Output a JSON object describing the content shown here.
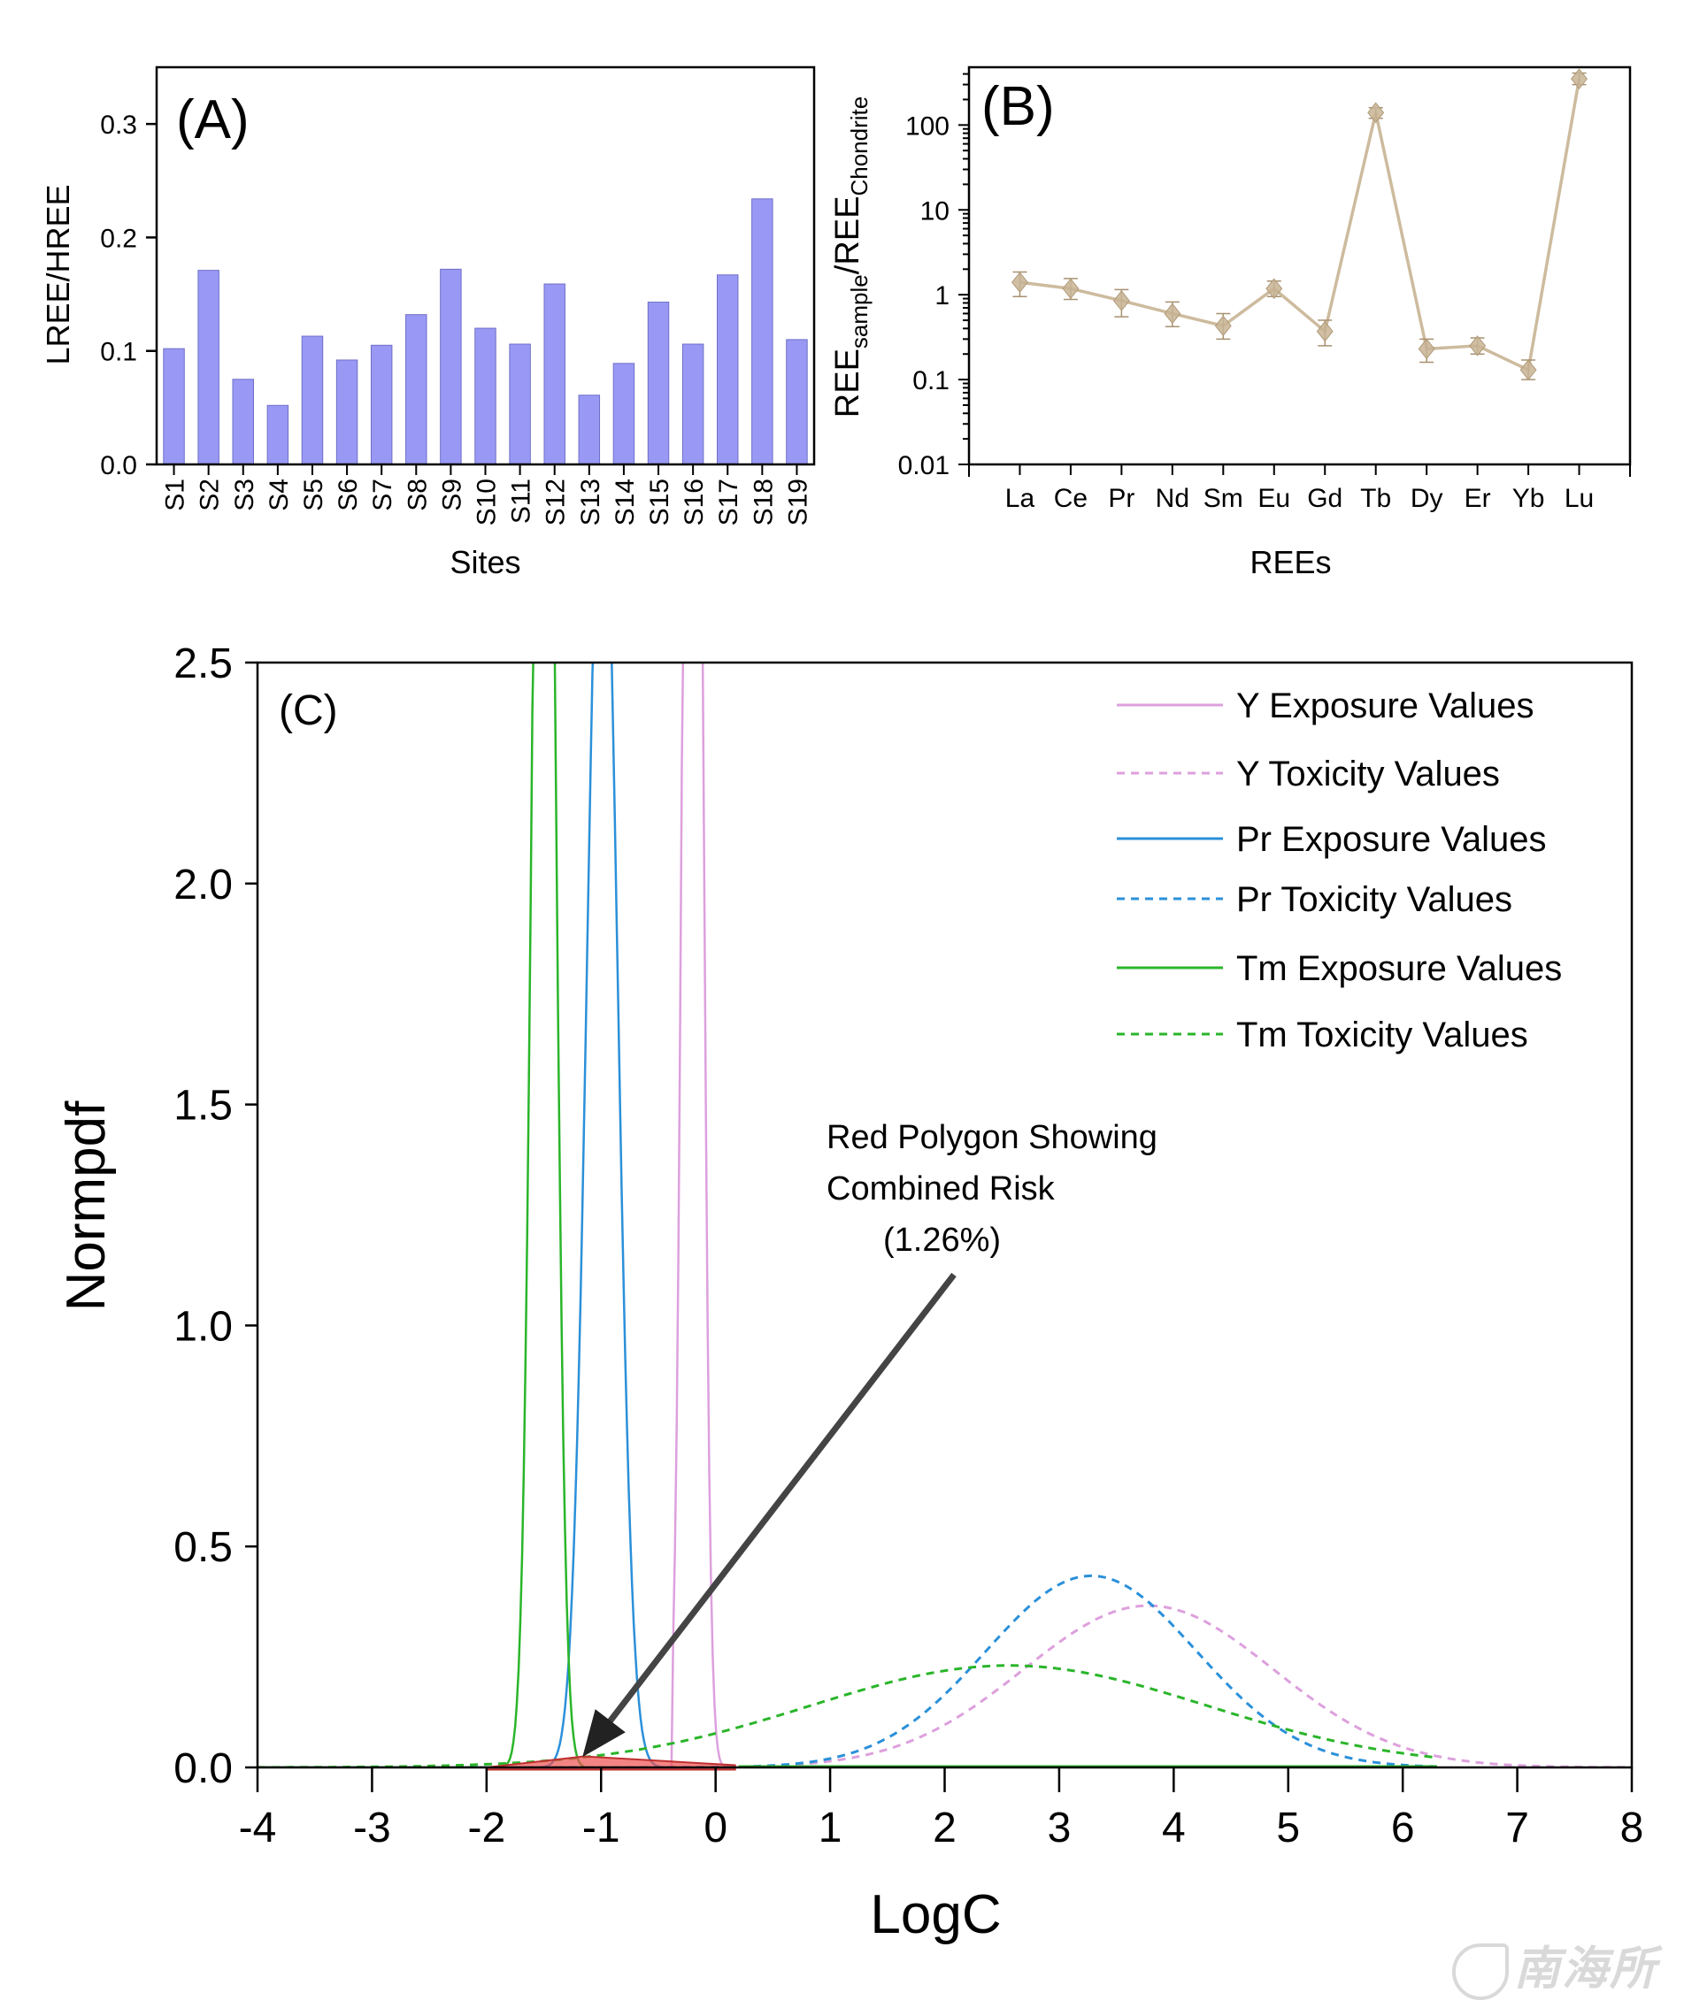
{
  "figure": {
    "watermark": "南海所",
    "colors": {
      "bar_fill": "#9999f5",
      "bar_stroke": "#6e6ec8",
      "ree_line": "#c8b494",
      "ree_marker": "#c8b494",
      "y_color": "#dda0dd",
      "pr_color": "#2b90d9",
      "tm_color": "#2ab52a",
      "risk_polygon": "#f05050",
      "arrow": "#444444"
    }
  },
  "chart_data": [
    {
      "id": "A",
      "type": "bar",
      "panel_label": "(A)",
      "title": "",
      "xlabel": "Sites",
      "ylabel": "LREE/HREE",
      "ylim": [
        0,
        0.35
      ],
      "yticks": [
        0.0,
        0.1,
        0.2,
        0.3
      ],
      "ytick_labels": [
        "0.0",
        "0.1",
        "0.2",
        "0.3"
      ],
      "grid": false,
      "categories": [
        "S1",
        "S2",
        "S3",
        "S4",
        "S5",
        "S6",
        "S7",
        "S8",
        "S9",
        "S10",
        "S11",
        "S12",
        "S13",
        "S14",
        "S15",
        "S16",
        "S17",
        "S18",
        "S19"
      ],
      "values": [
        0.102,
        0.171,
        0.075,
        0.052,
        0.113,
        0.092,
        0.105,
        0.132,
        0.172,
        0.12,
        0.106,
        0.159,
        0.061,
        0.089,
        0.143,
        0.106,
        0.167,
        0.234,
        0.11
      ]
    },
    {
      "id": "B",
      "type": "line",
      "panel_label": "(B)",
      "title": "",
      "xlabel": "REEs",
      "ylabel_main": "REE",
      "ylabel_sub1": "sample",
      "ylabel_mid": "/REE",
      "ylabel_sub2": "Chondrite",
      "yscale": "log",
      "ylim": [
        0.01,
        480
      ],
      "yticks": [
        0.01,
        0.1,
        1,
        10,
        100
      ],
      "ytick_labels": [
        "0.01",
        "0.1",
        "1",
        "10",
        "100"
      ],
      "grid": false,
      "categories": [
        "La",
        "Ce",
        "Pr",
        "Nd",
        "Sm",
        "Eu",
        "Gd",
        "Tb",
        "Dy",
        "Er",
        "Yb",
        "Lu"
      ],
      "values": [
        1.4,
        1.18,
        0.85,
        0.6,
        0.43,
        1.18,
        0.37,
        140,
        0.23,
        0.25,
        0.13,
        350
      ],
      "err_low": [
        0.95,
        0.88,
        0.55,
        0.42,
        0.3,
        0.95,
        0.25,
        120,
        0.16,
        0.2,
        0.1,
        300
      ],
      "err_high": [
        1.85,
        1.55,
        1.15,
        0.82,
        0.6,
        1.45,
        0.5,
        160,
        0.3,
        0.31,
        0.17,
        410
      ],
      "marker": "diamond"
    },
    {
      "id": "C",
      "type": "line",
      "panel_label": "(C)",
      "title": "",
      "xlabel": "LogC",
      "ylabel": "Normpdf",
      "xlim": [
        -4,
        8
      ],
      "ylim": [
        0,
        2.5
      ],
      "xticks": [
        -4,
        -3,
        -2,
        -1,
        0,
        1,
        2,
        3,
        4,
        5,
        6,
        7,
        8
      ],
      "xtick_labels": [
        "-4",
        "-3",
        "-2",
        "-1",
        "0",
        "1",
        "2",
        "3",
        "4",
        "5",
        "6",
        "7",
        "8"
      ],
      "yticks": [
        0.0,
        0.5,
        1.0,
        1.5,
        2.0,
        2.5
      ],
      "ytick_labels": [
        "0.0",
        "0.5",
        "1.0",
        "1.5",
        "2.0",
        "2.5"
      ],
      "grid": false,
      "legend_position": "top-right",
      "series": [
        {
          "name": "Y Exposure Values",
          "element": "Y",
          "kind": "exposure",
          "style": "solid",
          "color_key": "y_color",
          "mean": -0.2,
          "sd": 0.07,
          "x_range": [
            -0.38,
            0.17
          ]
        },
        {
          "name": "Y Toxicity Values",
          "element": "Y",
          "kind": "toxicity",
          "style": "dashed",
          "color_key": "y_color",
          "mean": 3.78,
          "sd": 1.09,
          "x_range": [
            -4,
            8
          ]
        },
        {
          "name": "Pr Exposure Values",
          "element": "Pr",
          "kind": "exposure",
          "style": "solid",
          "color_key": "pr_color",
          "mean": -0.99,
          "sd": 0.13,
          "x_range": [
            -1.53,
            -0.45
          ]
        },
        {
          "name": "Pr Toxicity Values",
          "element": "Pr",
          "kind": "toxicity",
          "style": "dashed",
          "color_key": "pr_color",
          "mean": 3.28,
          "sd": 0.92,
          "x_range": [
            -4,
            6.3
          ]
        },
        {
          "name": "Tm Exposure Values",
          "element": "Tm",
          "kind": "exposure",
          "style": "solid",
          "color_key": "tm_color",
          "mean": -1.5,
          "sd": 0.09,
          "x_range": [
            -1.94,
            -1.15
          ]
        },
        {
          "name": "Tm Toxicity Values",
          "element": "Tm",
          "kind": "toxicity",
          "style": "dashed",
          "color_key": "tm_color",
          "mean": 2.56,
          "sd": 1.73,
          "x_range": [
            -4,
            6.3
          ]
        }
      ],
      "annotation": {
        "lines": [
          "Red Polygon Showing",
          "Combined Risk",
          "(1.26%)"
        ],
        "combined_risk_percent": 1.26,
        "arrow_tip": [
          -1.15,
          0.02
        ],
        "polygon_x_range": [
          -2.0,
          0.17
        ]
      }
    }
  ]
}
